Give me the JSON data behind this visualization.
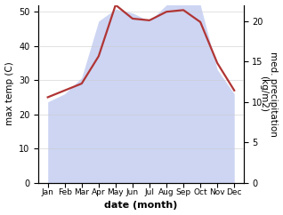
{
  "months": [
    "Jan",
    "Feb",
    "Mar",
    "Apr",
    "May",
    "Jun",
    "Jul",
    "Aug",
    "Sep",
    "Oct",
    "Nov",
    "Dec"
  ],
  "temperature": [
    25.0,
    27.0,
    29.0,
    37.0,
    52.0,
    48.0,
    47.5,
    50.0,
    50.5,
    47.0,
    35.0,
    27.0
  ],
  "precipitation": [
    10.0,
    11.0,
    13.0,
    20.0,
    21.5,
    21.0,
    20.0,
    22.0,
    22.5,
    22.0,
    14.0,
    11.0
  ],
  "temp_color": "#b03535",
  "precip_fill_color": "#b8c4ee",
  "ylabel_left": "max temp (C)",
  "ylabel_right": "med. precipitation\n(kg/m2)",
  "xlabel": "date (month)",
  "ylim_left": [
    0,
    52
  ],
  "ylim_right": [
    0,
    22
  ],
  "yticks_left": [
    0,
    10,
    20,
    30,
    40,
    50
  ],
  "yticks_right": [
    0,
    5,
    10,
    15,
    20
  ],
  "bg_color": "#ffffff",
  "temp_linewidth": 1.6,
  "xlabel_fontsize": 8,
  "ylabel_fontsize": 7.5,
  "tick_fontsize": 7,
  "xtick_fontsize": 6.5
}
